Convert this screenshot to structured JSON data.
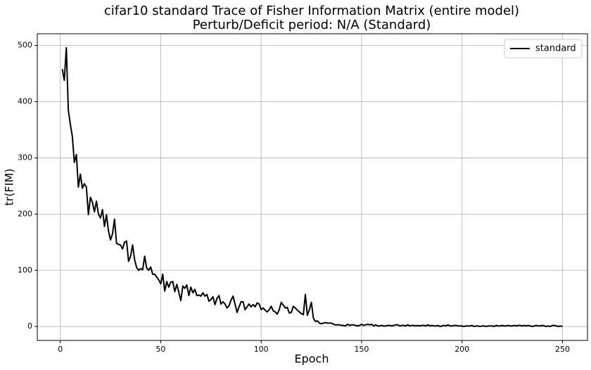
{
  "chart_data": {
    "type": "line",
    "title": "cifar10 standard Trace of Fisher Information Matrix (entire model)",
    "subtitle": "Perturb/Deficit period: N/A (Standard)",
    "x_label": "Epoch",
    "y_label": "tr(FIM)",
    "x": [
      1,
      2,
      3,
      4,
      5,
      6,
      7,
      8,
      9,
      10,
      11,
      12,
      13,
      14,
      15,
      16,
      17,
      18,
      19,
      20,
      21,
      22,
      23,
      24,
      25,
      26,
      27,
      28,
      29,
      30,
      31,
      32,
      33,
      34,
      35,
      36,
      37,
      38,
      39,
      40,
      41,
      42,
      43,
      44,
      45,
      46,
      47,
      48,
      49,
      50,
      51,
      52,
      53,
      54,
      55,
      56,
      57,
      58,
      59,
      60,
      61,
      62,
      63,
      64,
      65,
      66,
      67,
      68,
      69,
      70,
      71,
      72,
      73,
      74,
      75,
      76,
      77,
      78,
      79,
      80,
      81,
      82,
      83,
      84,
      85,
      86,
      87,
      88,
      89,
      90,
      91,
      92,
      93,
      94,
      95,
      96,
      97,
      98,
      99,
      100,
      101,
      102,
      103,
      104,
      105,
      106,
      107,
      108,
      109,
      110,
      111,
      112,
      113,
      114,
      115,
      116,
      117,
      118,
      119,
      120,
      121,
      122,
      123,
      124,
      125,
      126,
      127,
      128,
      129,
      130,
      131,
      132,
      133,
      134,
      135,
      136,
      137,
      138,
      139,
      140,
      141,
      142,
      143,
      144,
      145,
      146,
      147,
      148,
      149,
      150,
      151,
      152,
      153,
      154,
      155,
      156,
      157,
      158,
      159,
      160,
      161,
      162,
      163,
      164,
      165,
      166,
      167,
      168,
      169,
      170,
      171,
      172,
      173,
      174,
      175,
      176,
      177,
      178,
      179,
      180,
      181,
      182,
      183,
      184,
      185,
      186,
      187,
      188,
      189,
      190,
      191,
      192,
      193,
      194,
      195,
      196,
      197,
      198,
      199,
      200,
      201,
      202,
      203,
      204,
      205,
      206,
      207,
      208,
      209,
      210,
      211,
      212,
      213,
      214,
      215,
      216,
      217,
      218,
      219,
      220,
      221,
      222,
      223,
      224,
      225,
      226,
      227,
      228,
      229,
      230,
      231,
      232,
      233,
      234,
      235,
      236,
      237,
      238,
      239,
      240,
      241,
      242,
      243,
      244,
      245,
      246,
      247,
      248,
      249,
      250
    ],
    "series": [
      {
        "name": "standard",
        "color": "#000000",
        "values": [
          458,
          438,
          496,
          385,
          360,
          338,
          292,
          306,
          248,
          271,
          246,
          254,
          248,
          199,
          230,
          221,
          204,
          223,
          200,
          193,
          208,
          178,
          199,
          170,
          154,
          165,
          191,
          148,
          146,
          145,
          138,
          150,
          152,
          116,
          125,
          145,
          119,
          105,
          100,
          103,
          101,
          125,
          104,
          100,
          106,
          93,
          93,
          88,
          83,
          76,
          93,
          63,
          80,
          70,
          79,
          80,
          62,
          75,
          61,
          46,
          72,
          68,
          74,
          55,
          70,
          60,
          66,
          55,
          56,
          54,
          60,
          54,
          57,
          45,
          48,
          53,
          39,
          50,
          55,
          40,
          44,
          40,
          33,
          37,
          47,
          54,
          40,
          25,
          35,
          44,
          44,
          30,
          35,
          40,
          35,
          39,
          35,
          42,
          40,
          30,
          33,
          29,
          26,
          30,
          36,
          28,
          26,
          22,
          30,
          43,
          38,
          33,
          34,
          24,
          25,
          36,
          33,
          29,
          26,
          23,
          21,
          57,
          20,
          30,
          43,
          15,
          9,
          10,
          6,
          5,
          6,
          7,
          6,
          6,
          6,
          4,
          3,
          3,
          3,
          2,
          2,
          1,
          4,
          2,
          3,
          3,
          2,
          1,
          2,
          4,
          2,
          3,
          4,
          3,
          4,
          1,
          3,
          1,
          1,
          2,
          1,
          1,
          2,
          2,
          1,
          2,
          3,
          3,
          1,
          2,
          2,
          1,
          3,
          1,
          2,
          2,
          1,
          2,
          1,
          2,
          2,
          1,
          3,
          1,
          2,
          1,
          1,
          2,
          0,
          1,
          2,
          1,
          3,
          1,
          1,
          2,
          2,
          1,
          1,
          1,
          0,
          1,
          1,
          1,
          2,
          0,
          1,
          1,
          0,
          1,
          1,
          0,
          1,
          1,
          1,
          0,
          2,
          1,
          1,
          2,
          1,
          1,
          2,
          1,
          1,
          2,
          1,
          2,
          2,
          1,
          2,
          1,
          2,
          1,
          0,
          1,
          2,
          1,
          1,
          2,
          1,
          0,
          1,
          0,
          2,
          2,
          1,
          0,
          1,
          0
        ]
      }
    ],
    "xlim": [
      -11.45,
      262.45
    ],
    "xticks": [
      0,
      50,
      100,
      150,
      200,
      250
    ],
    "ylim": [
      -24.8,
      520.8
    ],
    "yticks": [
      0,
      100,
      200,
      300,
      400,
      500
    ],
    "grid": true,
    "legend": "upper right"
  }
}
